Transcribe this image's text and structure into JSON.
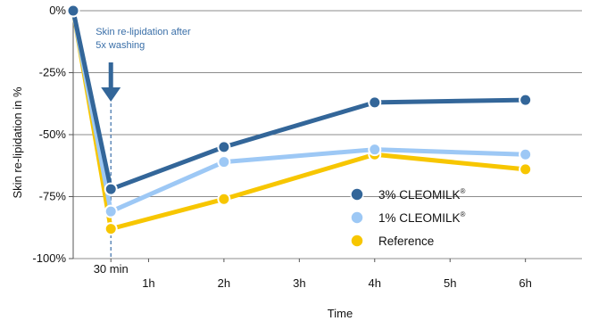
{
  "chart_data": {
    "type": "line",
    "xlabel": "Time",
    "ylabel": "Skin re-lipidation in %",
    "x_ticks": [
      {
        "label": "30 min",
        "x": 0.5,
        "color": "#3a6fa8",
        "small": true
      },
      {
        "label": "1h",
        "x": 1
      },
      {
        "label": "2h",
        "x": 2
      },
      {
        "label": "3h",
        "x": 3
      },
      {
        "label": "4h",
        "x": 4
      },
      {
        "label": "5h",
        "x": 5
      },
      {
        "label": "6h",
        "x": 6
      }
    ],
    "y_ticks": [
      "0%",
      "-25%",
      "-50%",
      "-75%",
      "-100%"
    ],
    "y_tick_values": [
      0,
      -25,
      -50,
      -75,
      -100
    ],
    "xlim": [
      0,
      6.75
    ],
    "ylim": [
      -100,
      0
    ],
    "grid": "horizontal",
    "legend_position": "bottom-right",
    "annotation": {
      "lines": [
        "Skin re-lipidation after",
        "5x  washing"
      ],
      "x": 0.5
    },
    "series": [
      {
        "name": "3% CLEOMILK",
        "sup": "®",
        "color": "#336699",
        "x": [
          0,
          0.5,
          2,
          4,
          6
        ],
        "values": [
          0,
          -72,
          -55,
          -37,
          -36
        ]
      },
      {
        "name": "1% CLEOMILK",
        "sup": "®",
        "color": "#9dc8f5",
        "x": [
          0,
          0.5,
          2,
          4,
          6
        ],
        "values": [
          0,
          -81,
          -61,
          -56,
          -58
        ]
      },
      {
        "name": "Reference",
        "sup": "",
        "color": "#f7c600",
        "x": [
          0,
          0.5,
          2,
          4,
          6
        ],
        "values": [
          0,
          -88,
          -76,
          -58,
          -64
        ]
      }
    ]
  }
}
